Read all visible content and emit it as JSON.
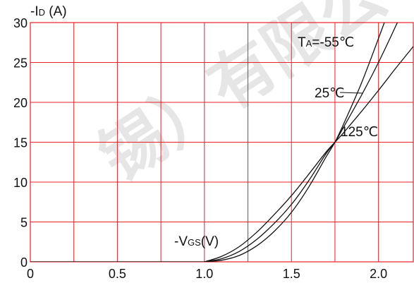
{
  "chart_data": {
    "type": "line",
    "ylabel": "-ID (A)",
    "ylabel_parts": {
      "pre": "-I",
      "sub": "D",
      "post": " (A)"
    },
    "xlabel": "-VGS(V)",
    "xlabel_parts": {
      "pre": "-V",
      "sub": "GS",
      "post": "(V)"
    },
    "xlim": [
      0,
      2.2
    ],
    "ylim": [
      0,
      30
    ],
    "x_grid_step": 0.25,
    "y_grid_step": 5,
    "x_tick_labels": [
      "0",
      "0.5",
      "1.0",
      "1.5",
      "2.0"
    ],
    "y_tick_labels": [
      "0",
      "5",
      "10",
      "15",
      "20",
      "25",
      "30"
    ],
    "grid": true,
    "grid_color": "#e8202a",
    "curve_color": "#111111",
    "series": [
      {
        "name": "TA=-55℃",
        "label_parts": {
          "pre": "T",
          "sub": "A",
          "post": "=-55℃"
        },
        "x": [
          1.0,
          1.1,
          1.2,
          1.3,
          1.4,
          1.5,
          1.6,
          1.7,
          1.75,
          1.8,
          1.9,
          2.0,
          2.05,
          2.1
        ],
        "y": [
          0,
          0.2,
          0.8,
          2.0,
          3.8,
          6.2,
          9.4,
          13.2,
          15.0,
          17.3,
          22.3,
          28.0,
          31.0,
          34.0
        ]
      },
      {
        "name": "25℃",
        "label_parts": {
          "pre": "25℃",
          "sub": "",
          "post": ""
        },
        "x": [
          1.0,
          1.1,
          1.2,
          1.3,
          1.4,
          1.5,
          1.6,
          1.7,
          1.75,
          1.8,
          1.9,
          2.0,
          2.1,
          2.15
        ],
        "y": [
          0,
          0.4,
          1.3,
          2.8,
          4.8,
          7.2,
          10.2,
          13.6,
          15.0,
          16.9,
          20.8,
          25.0,
          29.6,
          32.0
        ]
      },
      {
        "name": "125℃",
        "label_parts": {
          "pre": "125℃",
          "sub": "",
          "post": ""
        },
        "x": [
          1.0,
          1.1,
          1.2,
          1.3,
          1.4,
          1.5,
          1.6,
          1.7,
          1.75,
          1.8,
          1.9,
          2.0,
          2.1,
          2.2
        ],
        "y": [
          0,
          0.7,
          1.9,
          3.7,
          5.9,
          8.3,
          11.0,
          13.8,
          15.0,
          16.2,
          18.8,
          21.5,
          24.3,
          27.0
        ]
      }
    ],
    "watermark": "锡）有限公"
  }
}
